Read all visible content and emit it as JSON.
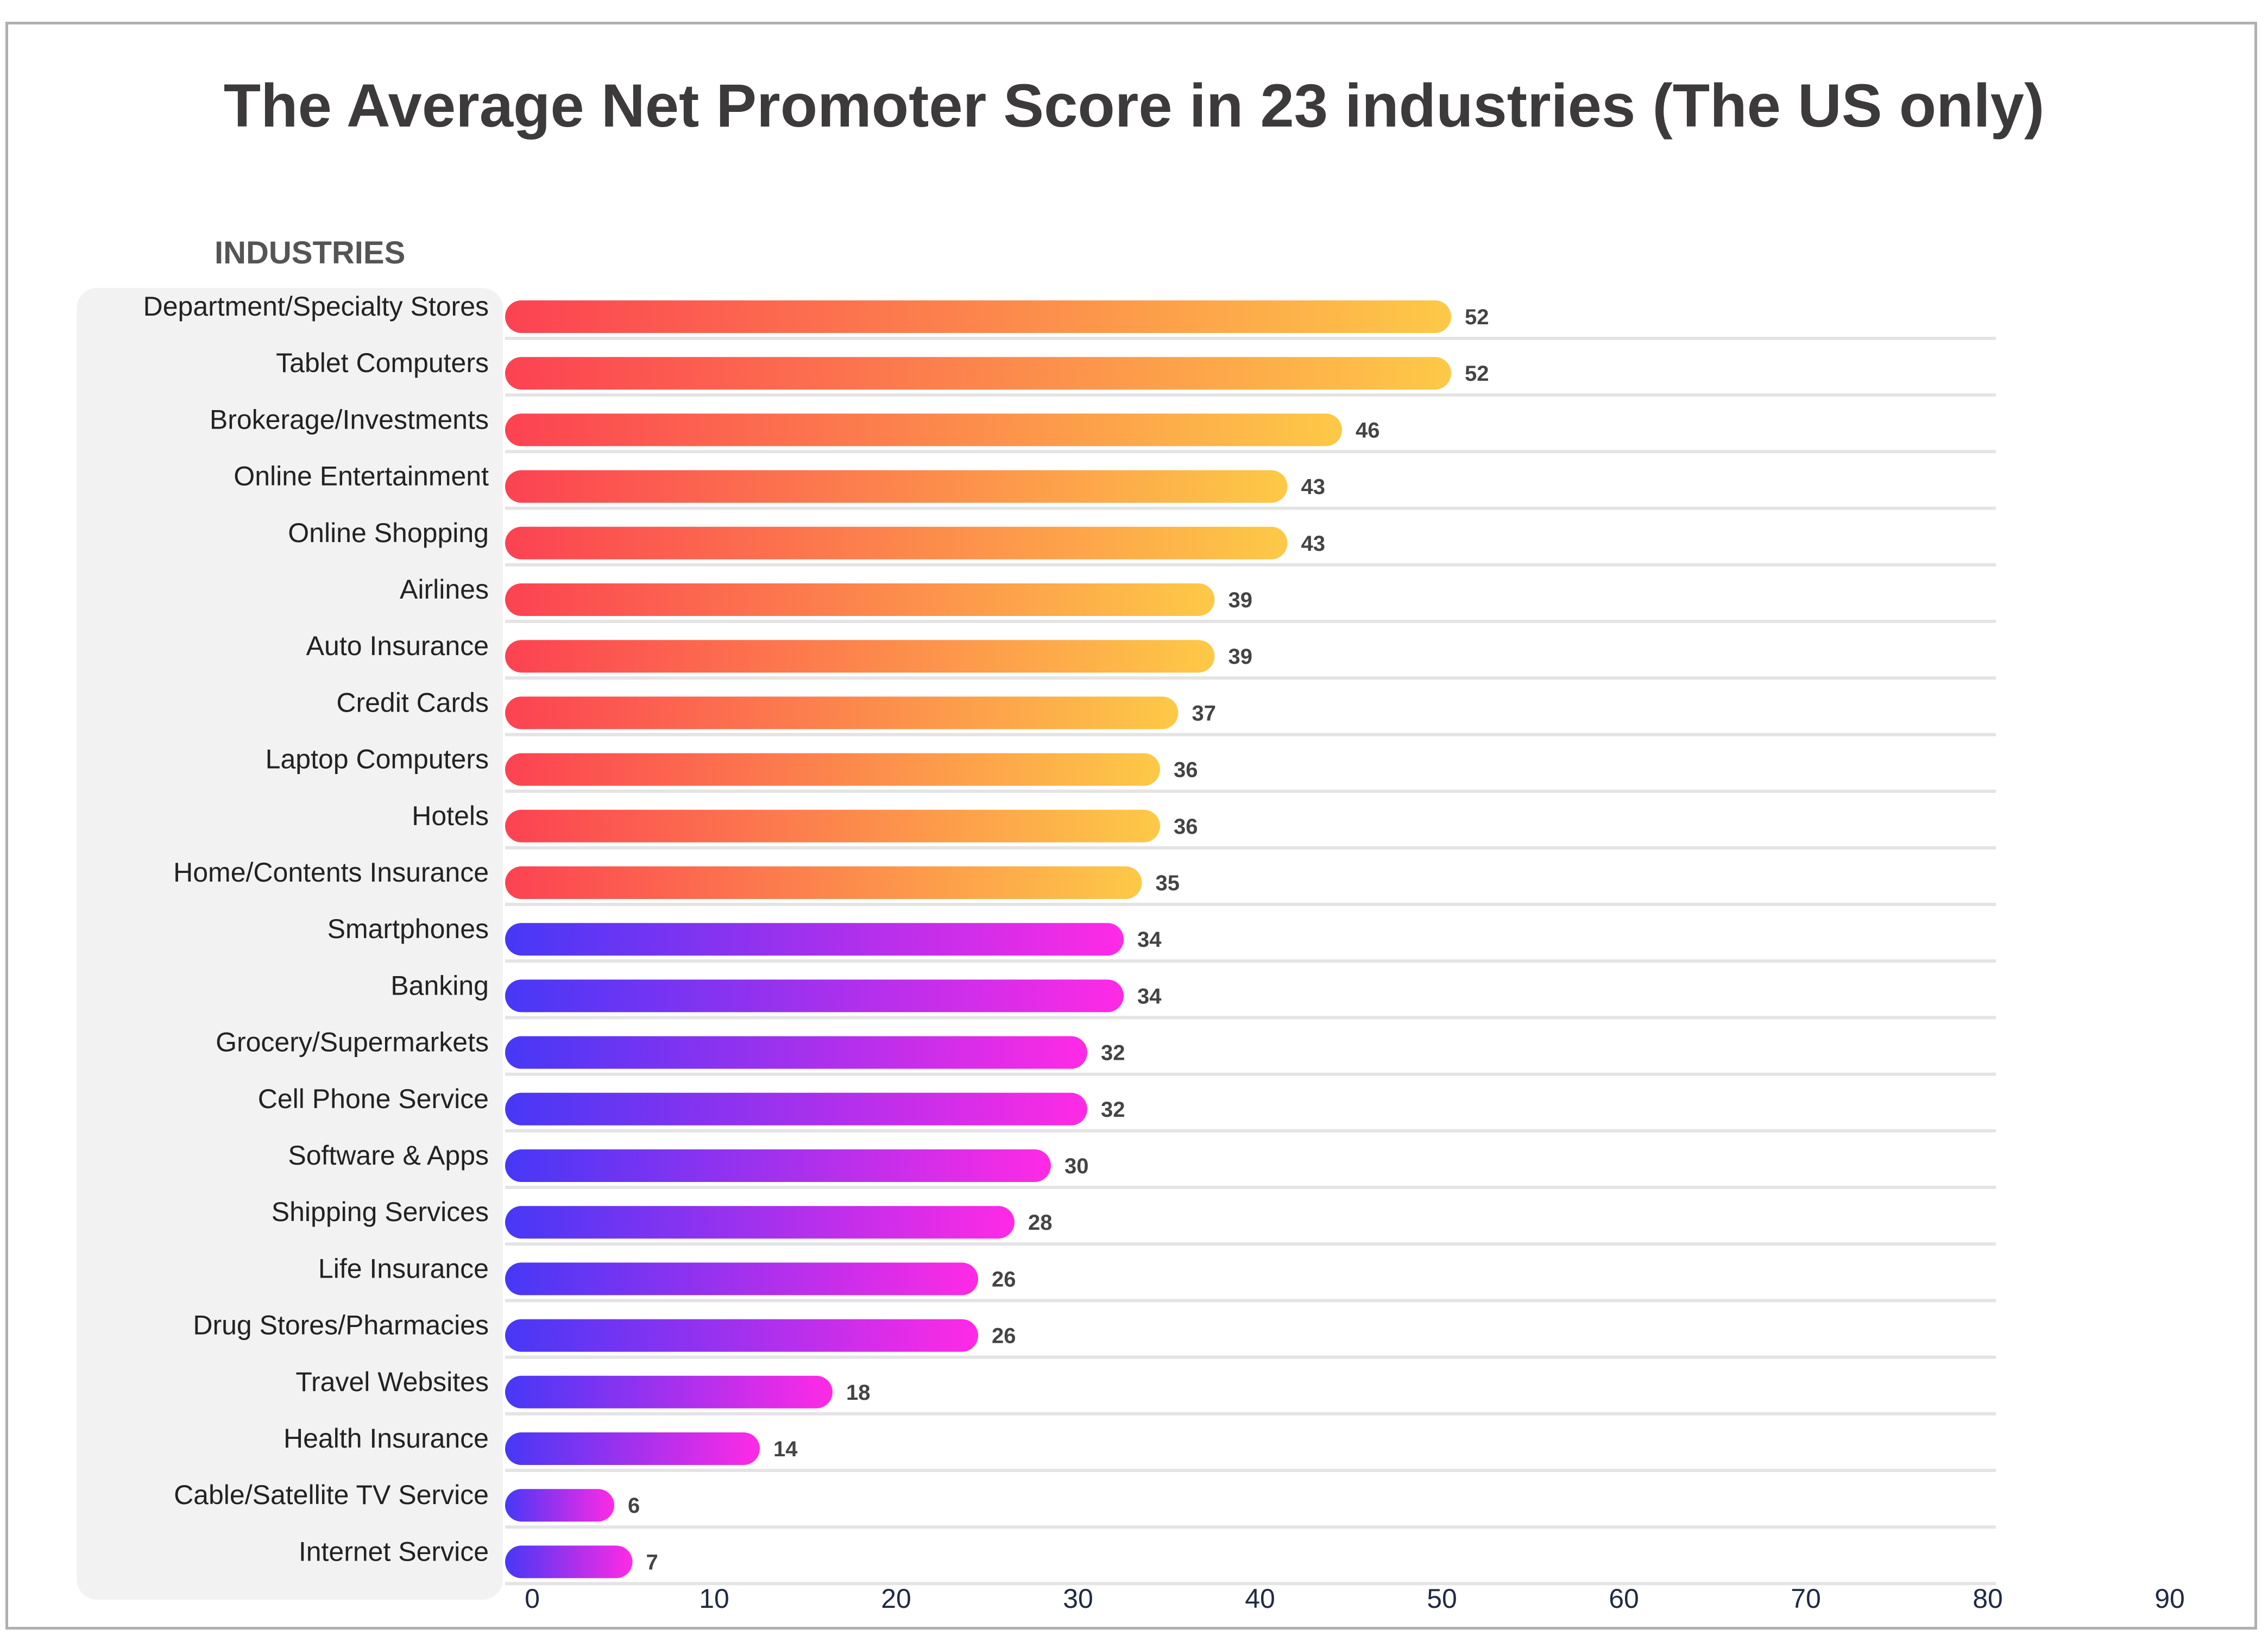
{
  "chart_data": {
    "type": "bar",
    "orientation": "horizontal",
    "title": "The Average Net Promoter Score in 23 industries (The US only)",
    "ylabel": "INDUSTRIES",
    "xlabel": "",
    "xlim": [
      0,
      90
    ],
    "x_ticks": [
      "0",
      "10",
      "20",
      "30",
      "40",
      "50",
      "60",
      "70",
      "80",
      "90"
    ],
    "grid": "horizontal row separators",
    "categories": [
      "Department/Specialty Stores",
      "Tablet Computers",
      "Brokerage/Investments",
      "Online Entertainment",
      "Online Shopping",
      "Airlines",
      "Auto Insurance",
      "Credit Cards",
      "Laptop Computers",
      "Hotels",
      "Home/Contents Insurance",
      "Smartphones",
      "Banking",
      "Grocery/Supermarkets",
      "Cell Phone Service",
      "Software & Apps",
      "Shipping Services",
      "Life Insurance",
      "Drug Stores/Pharmacies",
      "Travel Websites",
      "Health Insurance",
      "Cable/Satellite TV Service",
      "Internet Service"
    ],
    "values": [
      52,
      52,
      46,
      43,
      43,
      39,
      39,
      37,
      36,
      36,
      35,
      34,
      34,
      32,
      32,
      30,
      28,
      26,
      26,
      18,
      14,
      6,
      7
    ],
    "data_labels": [
      "52",
      "52",
      "46",
      "43",
      "43",
      "39",
      "39",
      "37",
      "36",
      "36",
      "35",
      "34",
      "34",
      "32",
      "32",
      "30",
      "28",
      "26",
      "26",
      "18",
      "14",
      "6",
      "7"
    ],
    "color_groups": [
      {
        "count": 11,
        "gradient": [
          "#fc4252",
          "#fdc947"
        ]
      },
      {
        "count": 12,
        "gradient": [
          "#4638f6",
          "#ff2ae5"
        ]
      }
    ]
  },
  "colors": {
    "title": "#3d3a3b",
    "label_panel": "#f2f2f2",
    "gridline": "#e4e4e4",
    "frame": "#b0b0b0"
  }
}
